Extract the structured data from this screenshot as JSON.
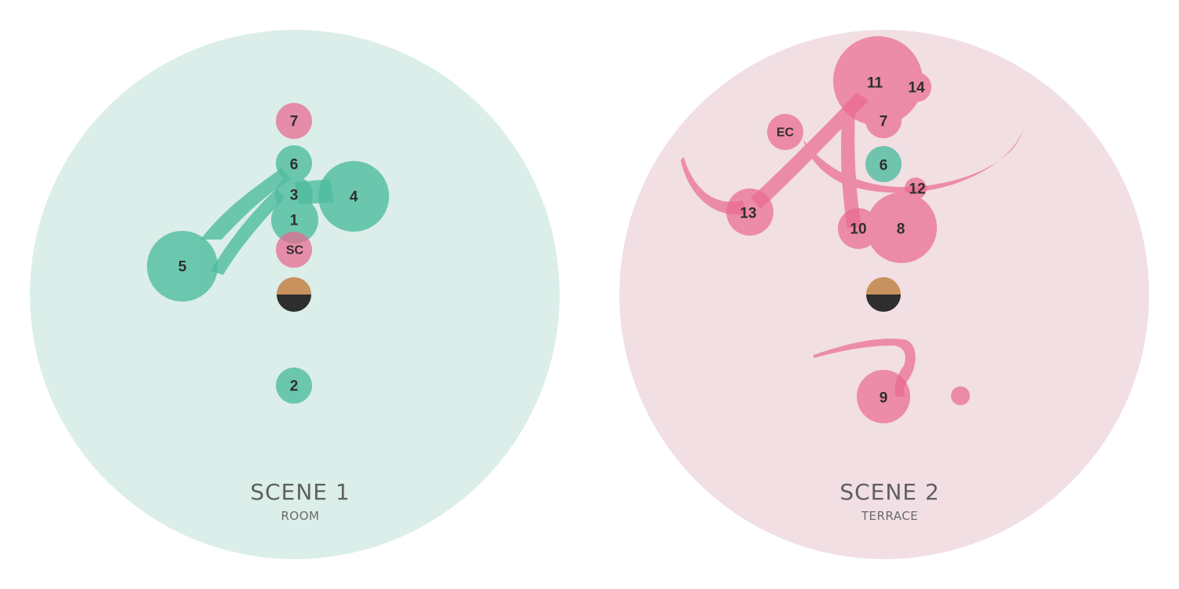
{
  "colors": {
    "scene1_bg": "#dbeee9",
    "scene2_bg": "#f1dfe3",
    "green": "#4fbd9f",
    "pink": "#e9688f",
    "head_top": "#c8925e",
    "head_bottom": "#2e2e2e"
  },
  "scenes": [
    {
      "title": "SCENE 1",
      "subtitle": "ROOM",
      "labels": {
        "n7": "7",
        "n6": "6",
        "n3": "3",
        "n4": "4",
        "n1": "1",
        "sc": "SC",
        "n5": "5",
        "n2": "2"
      }
    },
    {
      "title": "SCENE 2",
      "subtitle": "TERRACE",
      "labels": {
        "n11": "11",
        "n14": "14",
        "n7": "7",
        "ec": "EC",
        "n6": "6",
        "n12": "12",
        "n13": "13",
        "n10": "10",
        "n8": "8",
        "n9": "9"
      }
    }
  ]
}
